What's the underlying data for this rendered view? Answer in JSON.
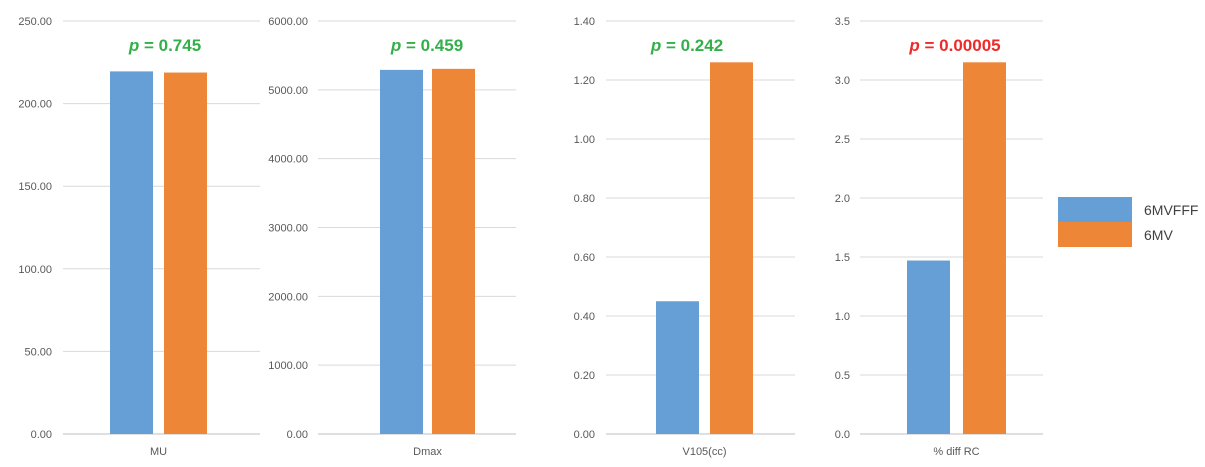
{
  "chart_data": [
    {
      "type": "bar",
      "categories": [
        "MU"
      ],
      "series": [
        {
          "name": "6MVFFF",
          "values": [
            219.5
          ]
        },
        {
          "name": "6MV",
          "values": [
            218.8
          ]
        }
      ],
      "ylim": [
        0,
        250
      ],
      "yticks": [
        "0.00",
        "50.00",
        "100.00",
        "150.00",
        "200.00",
        "250.00"
      ],
      "annotation": "= 0.745",
      "annotation_color": "#33b04a"
    },
    {
      "type": "bar",
      "categories": [
        "Dmax"
      ],
      "series": [
        {
          "name": "6MVFFF",
          "values": [
            5290
          ]
        },
        {
          "name": "6MV",
          "values": [
            5305
          ]
        }
      ],
      "ylim": [
        0,
        6000
      ],
      "yticks": [
        "0.00",
        "1000.00",
        "2000.00",
        "3000.00",
        "4000.00",
        "5000.00",
        "6000.00"
      ],
      "annotation": "= 0.459",
      "annotation_color": "#33b04a"
    },
    {
      "type": "bar",
      "categories": [
        "V105(cc)"
      ],
      "series": [
        {
          "name": "6MVFFF",
          "values": [
            0.45
          ]
        },
        {
          "name": "6MV",
          "values": [
            1.26
          ]
        }
      ],
      "ylim": [
        0,
        1.4
      ],
      "yticks": [
        "0.00",
        "0.20",
        "0.40",
        "0.60",
        "0.80",
        "1.00",
        "1.20",
        "1.40"
      ],
      "annotation": "= 0.242",
      "annotation_color": "#33b04a"
    },
    {
      "type": "bar",
      "categories": [
        "% diff RC"
      ],
      "series": [
        {
          "name": "6MVFFF",
          "values": [
            1.47
          ]
        },
        {
          "name": "6MV",
          "values": [
            3.15
          ]
        }
      ],
      "ylim": [
        0,
        3.5
      ],
      "yticks": [
        "0.0",
        "0.5",
        "1.0",
        "1.5",
        "2.0",
        "2.5",
        "3.0",
        "3.5"
      ],
      "annotation": "= 0.00005",
      "annotation_color": "#ee2a2a"
    }
  ],
  "p_symbol": "p",
  "colors": {
    "6MVFFF": "#659fd6",
    "6MV": "#ee8638",
    "grid": "#d9d9d9",
    "axis": "#bfbfbf"
  },
  "legend": {
    "position": "right",
    "items": [
      {
        "label": "6MVFFF",
        "color": "#659fd6"
      },
      {
        "label": "6MV",
        "color": "#ee8638"
      }
    ]
  }
}
